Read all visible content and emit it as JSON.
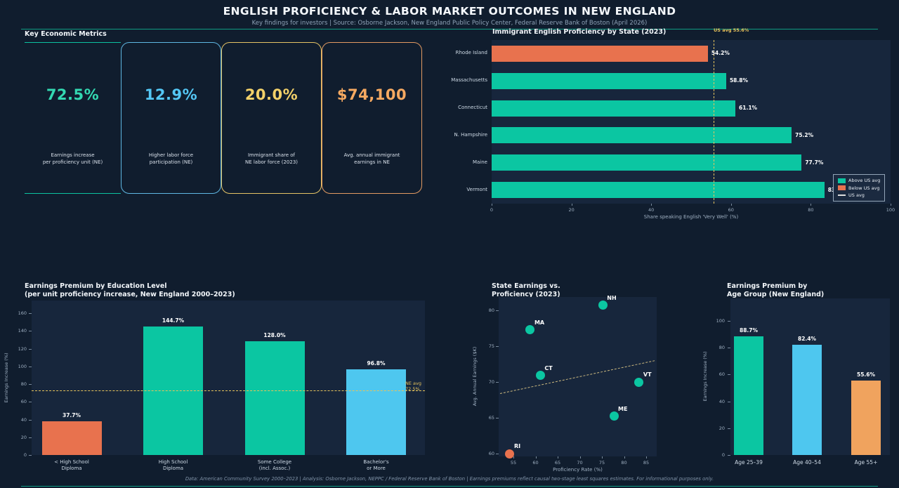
{
  "header": {
    "title": "ENGLISH PROFICIENCY & LABOR MARKET OUTCOMES IN NEW ENGLAND",
    "subtitle": "Key findings for investors  |  Source: Osborne Jackson, New England Public Policy Center, Federal Reserve Bank of Boston (April 2026)"
  },
  "metrics": {
    "section_title": "Key Economic Metrics",
    "cards": [
      {
        "value": "72.5%",
        "label": "Earnings increase\nper proficiency unit (NE)",
        "color": "#33d9b2",
        "border": "#0cc2a0"
      },
      {
        "value": "12.9%",
        "label": "Higher labor force\nparticipation (NE)",
        "color": "#54c7f5",
        "border": "#5fb7e3"
      },
      {
        "value": "20.0%",
        "label": "Immigrant share of\nNE labor force (2023)",
        "color": "#f3d169",
        "border": "#e5c365"
      },
      {
        "value": "$74,100",
        "label": "Avg. annual immigrant\nearnings in NE",
        "color": "#f6a961",
        "border": "#e29a62"
      }
    ]
  },
  "chart_data": [
    {
      "id": "immigrant_english_proficiency_by_state",
      "type": "bar",
      "orientation": "horizontal",
      "title": "Immigrant English Proficiency by State (2023)",
      "categories": [
        "Rhode Island",
        "Massachusetts",
        "Connecticut",
        "N. Hampshire",
        "Maine",
        "Vermont"
      ],
      "values": [
        54.2,
        58.8,
        61.1,
        75.2,
        77.7,
        83.4
      ],
      "labels": [
        "54.2%",
        "58.8%",
        "61.1%",
        "75.2%",
        "77.7%",
        "83.4%"
      ],
      "bar_colors": [
        "#e8724e",
        "#0bc6a2",
        "#0bc6a2",
        "#0bc6a2",
        "#0bc6a2",
        "#0bc6a2"
      ],
      "xlabel": "Share speaking English 'Very Well' (%)",
      "xlim": [
        0,
        100
      ],
      "xticks": [
        0,
        20,
        40,
        60,
        80,
        100
      ],
      "reference_line": {
        "value": 55.6,
        "label": "US avg 55.6%",
        "color": "#e6c35c"
      },
      "legend": [
        {
          "label": "Above US avg",
          "color": "#0bc6a2",
          "type": "swatch"
        },
        {
          "label": "Below US avg",
          "color": "#e8724e",
          "type": "swatch"
        },
        {
          "label": "US avg",
          "color": "#dddddd",
          "type": "dash"
        }
      ],
      "legend_position": "lower right",
      "grid": false
    },
    {
      "id": "earnings_premium_by_education",
      "type": "bar",
      "title": "Earnings Premium by Education Level\n(per unit proficiency increase, New England 2000–2023)",
      "categories": [
        "< High School\nDiploma",
        "High School\nDiploma",
        "Some College\n(incl. Assoc.)",
        "Bachelor's\nor More"
      ],
      "values": [
        37.7,
        144.7,
        128.0,
        96.8
      ],
      "labels": [
        "37.7%",
        "144.7%",
        "128.0%",
        "96.8%"
      ],
      "bar_colors": [
        "#e8724e",
        "#0bc6a2",
        "#0bc6a2",
        "#4ec7ef"
      ],
      "ylabel": "Earnings Increase (%)",
      "ylim": [
        0,
        165
      ],
      "yticks": [
        0,
        20,
        40,
        60,
        80,
        100,
        120,
        140,
        160
      ],
      "reference_line": {
        "value": 72.5,
        "label": "NE avg\n72.5%",
        "color": "#e6c35c"
      },
      "grid": false
    },
    {
      "id": "state_earnings_vs_proficiency",
      "type": "scatter",
      "title": "State Earnings vs.\nProficiency (2023)",
      "points": [
        {
          "label": "RI",
          "x": 54.2,
          "y": 60.0,
          "color": "#e8724e"
        },
        {
          "label": "MA",
          "x": 58.8,
          "y": 77.3,
          "color": "#0bc6a2"
        },
        {
          "label": "CT",
          "x": 61.1,
          "y": 70.9,
          "color": "#0bc6a2"
        },
        {
          "label": "NH",
          "x": 75.2,
          "y": 80.7,
          "color": "#0bc6a2"
        },
        {
          "label": "ME",
          "x": 77.7,
          "y": 65.2,
          "color": "#0bc6a2"
        },
        {
          "label": "VT",
          "x": 83.4,
          "y": 70.0,
          "color": "#0bc6a2"
        }
      ],
      "trend_line": {
        "x1": 52,
        "y1": 68.4,
        "x2": 87,
        "y2": 73.0,
        "style": "dashed",
        "color": "#cbb87f"
      },
      "xlabel": "Proficiency Rate (%)",
      "ylabel": "Avg. Annual Earnings ($K)",
      "xticks": [
        55,
        60,
        65,
        70,
        75,
        80,
        85
      ],
      "yticks": [
        60,
        65,
        70,
        75,
        80
      ],
      "xlim": [
        52,
        87
      ],
      "ylim": [
        58.7,
        82
      ],
      "grid": false
    },
    {
      "id": "earnings_premium_by_age_group",
      "type": "bar",
      "title": "Earnings Premium by\nAge Group (New England)",
      "categories": [
        "Age 25–39",
        "Age 40–54",
        "Age 55+"
      ],
      "values": [
        88.7,
        82.4,
        55.6
      ],
      "labels": [
        "88.7%",
        "82.4%",
        "55.6%"
      ],
      "bar_colors": [
        "#0bc6a2",
        "#4ec7ef",
        "#f0a35e"
      ],
      "ylabel": "Earnings Increase (%)",
      "ylim": [
        0,
        112
      ],
      "yticks": [
        0,
        20,
        40,
        60,
        80,
        100
      ],
      "grid": false
    }
  ],
  "footer": "Data: American Community Survey 2000–2023 | Analysis: Osborne Jackson, NEPPC / Federal Reserve Bank of Boston | Earnings premiums reflect causal two-stage least squares estimates. For informational purposes only."
}
